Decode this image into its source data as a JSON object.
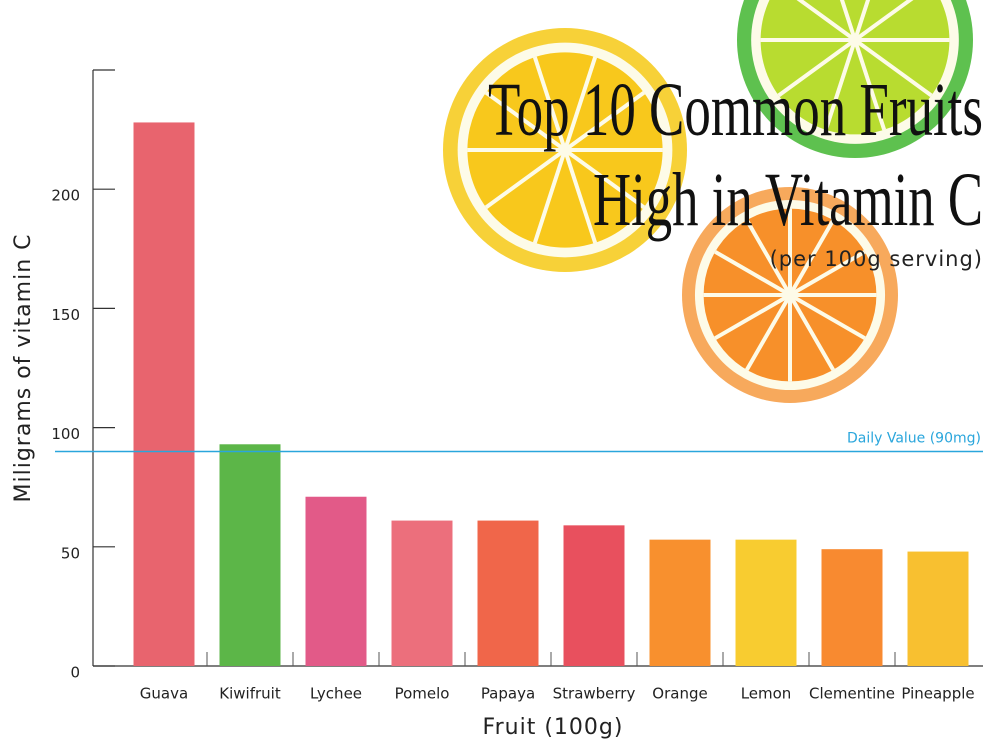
{
  "chart_data": {
    "type": "bar",
    "title": [
      "Top 10 Common Fruits",
      "High in Vitamin C"
    ],
    "subtitle": "(per 100g serving)",
    "x_label": "Fruit (100g)",
    "y_label": "Miligrams of vitamin C",
    "categories": [
      "Guava",
      "Kiwifruit",
      "Lychee",
      "Pomelo",
      "Papaya",
      "Strawberry",
      "Orange",
      "Lemon",
      "Clementine",
      "Pineapple"
    ],
    "values": [
      228,
      93,
      71,
      61,
      61,
      59,
      53,
      53,
      49,
      48
    ],
    "colors": [
      "#e8646e",
      "#5cb648",
      "#e25a88",
      "#ec6f7c",
      "#f0664a",
      "#e8505e",
      "#f8902e",
      "#f8cc30",
      "#f88a30",
      "#f8c030"
    ],
    "ylim": [
      0,
      250
    ],
    "yticks": [
      0,
      50,
      100,
      150,
      200
    ],
    "reference_line": {
      "value": 90,
      "label": "Daily Value (90mg)",
      "color": "#2aa6dc"
    }
  }
}
